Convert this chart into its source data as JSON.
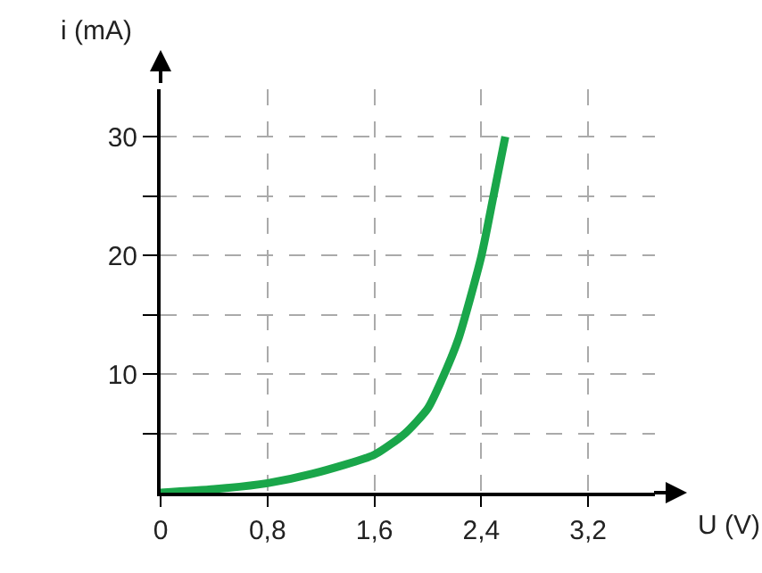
{
  "chart_data": {
    "type": "line",
    "xlabel": "U (V)",
    "ylabel": "i (mA)",
    "x": [
      0,
      0.4,
      0.8,
      1.14,
      1.6,
      1.83,
      2.0,
      2.1,
      2.23,
      2.4,
      2.49,
      2.58
    ],
    "series": [
      {
        "color": "#1aa64a",
        "values": [
          0,
          0.3,
          0.8,
          1.6,
          3.2,
          5.0,
          7.1,
          9.4,
          13,
          19.9,
          24.9,
          30
        ]
      }
    ],
    "xlim": [
      0,
      3.7
    ],
    "ylim": [
      0,
      34
    ],
    "xticks": [
      {
        "value": 0,
        "label": "0"
      },
      {
        "value": 0.8,
        "label": "0,8"
      },
      {
        "value": 1.6,
        "label": "1,6"
      },
      {
        "value": 2.4,
        "label": "2,4"
      },
      {
        "value": 3.2,
        "label": "3,2"
      }
    ],
    "yticks": [
      {
        "value": 5,
        "label": null
      },
      10,
      {
        "value": 15,
        "label": null
      },
      20,
      {
        "value": 25,
        "label": null
      },
      30
    ],
    "grid": true,
    "marker": "none",
    "line_style": "solid",
    "legend": false
  }
}
